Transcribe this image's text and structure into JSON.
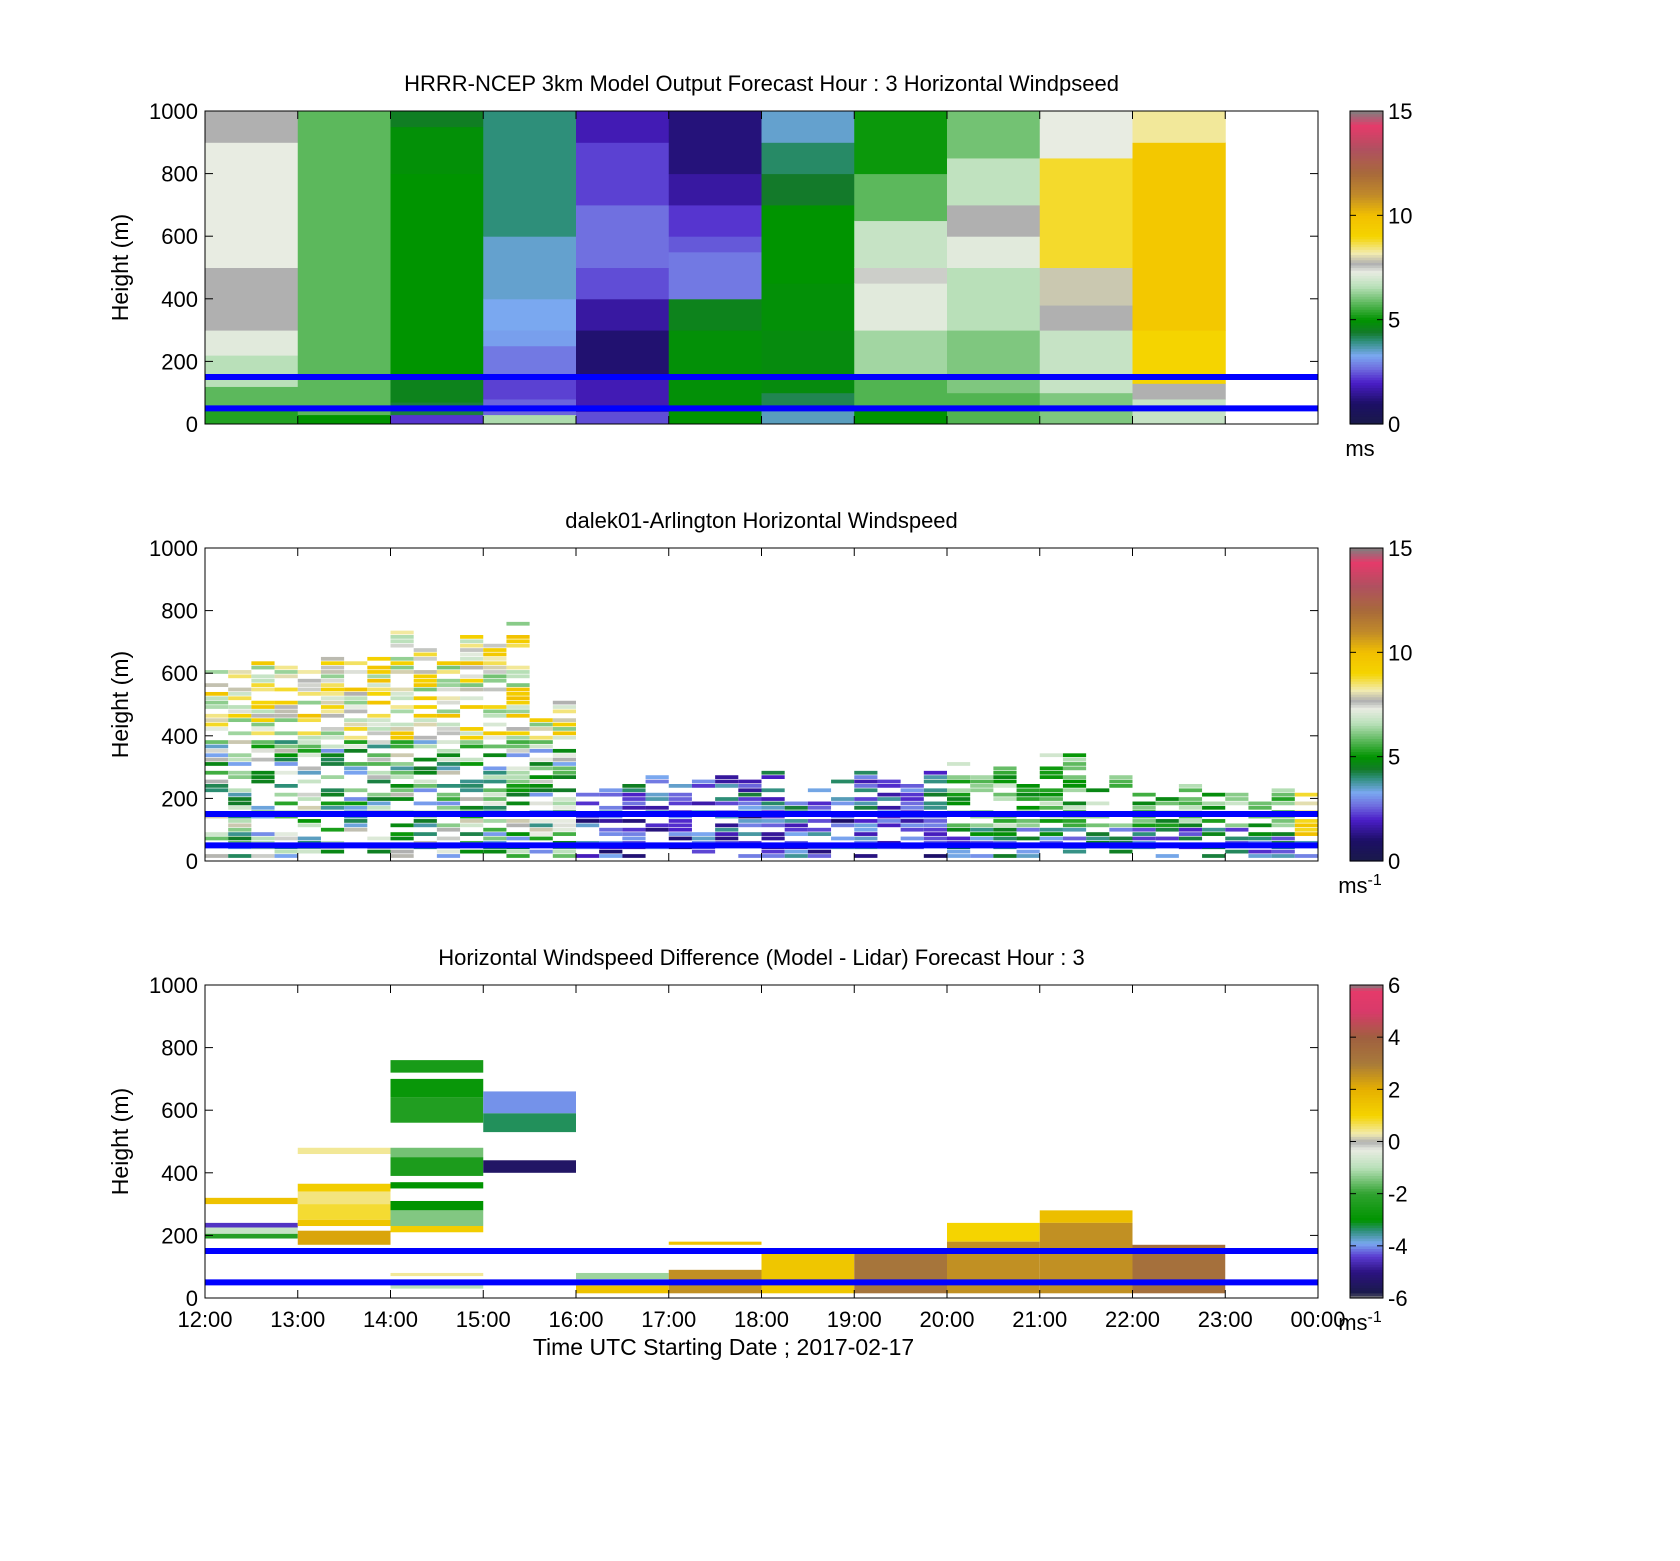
{
  "chart_data": [
    {
      "type": "heatmap",
      "title": "HRRR-NCEP 3km Model Output   Forecast Hour : 3 Horizontal Windpseed",
      "xlabel": "",
      "ylabel": "Height (m)",
      "ylim": [
        0,
        1000
      ],
      "yticks": [
        "0",
        "200",
        "400",
        "600",
        "800",
        "1000"
      ],
      "xlim": [
        12,
        24
      ],
      "show_xticklabels": false,
      "colorbar": {
        "min": 0,
        "max": 15,
        "ticks": [
          "0",
          "5",
          "10",
          "15"
        ],
        "unit_base": "ms",
        "unit_sup": "",
        "palette": "wind"
      },
      "reference_lines_m": [
        50,
        150
      ],
      "field": "model"
    },
    {
      "type": "heatmap",
      "title": "dalek01-Arlington  Horizontal Windspeed",
      "xlabel": "",
      "ylabel": "Height (m)",
      "ylim": [
        0,
        1000
      ],
      "yticks": [
        "0",
        "200",
        "400",
        "600",
        "800",
        "1000"
      ],
      "xlim": [
        12,
        24
      ],
      "show_xticklabels": false,
      "colorbar": {
        "min": 0,
        "max": 15,
        "ticks": [
          "0",
          "5",
          "10",
          "15"
        ],
        "unit_base": "ms",
        "unit_sup": "-1",
        "palette": "wind"
      },
      "reference_lines_m": [
        50,
        150
      ],
      "field": "lidar"
    },
    {
      "type": "heatmap",
      "title": "Horizontal Windspeed Difference (Model - Lidar) Forecast Hour : 3",
      "xlabel": "Time UTC  Starting Date ; 2017-02-17",
      "ylabel": "Height (m)",
      "ylim": [
        0,
        1000
      ],
      "yticks": [
        "0",
        "200",
        "400",
        "600",
        "800",
        "1000"
      ],
      "xlim": [
        12,
        24
      ],
      "xticks": [
        "12:00",
        "13:00",
        "14:00",
        "15:00",
        "16:00",
        "17:00",
        "18:00",
        "19:00",
        "20:00",
        "21:00",
        "22:00",
        "23:00",
        "00:00"
      ],
      "show_xticklabels": true,
      "colorbar": {
        "min": -6,
        "max": 6,
        "ticks": [
          "-6",
          "-4",
          "-2",
          "0",
          "2",
          "4",
          "6"
        ],
        "unit_base": "ms",
        "unit_sup": "-1",
        "palette": "diff"
      },
      "reference_lines_m": [
        50,
        150
      ],
      "field": "difference"
    }
  ],
  "colors": {
    "reference_line": "#0000ff",
    "axis": "#000000"
  }
}
